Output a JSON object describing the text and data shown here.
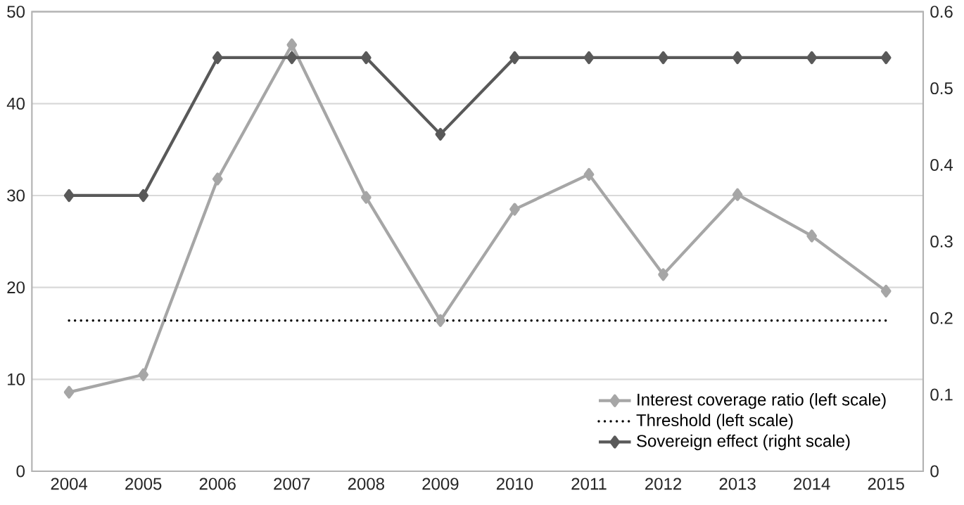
{
  "chart_data": {
    "type": "line",
    "categories": [
      "2004",
      "2005",
      "2006",
      "2007",
      "2008",
      "2009",
      "2010",
      "2011",
      "2012",
      "2013",
      "2014",
      "2015"
    ],
    "series": [
      {
        "name": "Interest coverage ratio (left scale)",
        "color": "#a6a6a6",
        "marker": "diamond",
        "line_style": "solid",
        "values": [
          8.6,
          10.5,
          31.8,
          46.4,
          29.8,
          16.4,
          28.5,
          32.3,
          21.4,
          30.1,
          25.6,
          19.6
        ]
      },
      {
        "name": "Threshold (left scale)",
        "color": "#000000",
        "marker": "none",
        "line_style": "dotted",
        "values": [
          16.4,
          16.4,
          16.4,
          16.4,
          16.4,
          16.4,
          16.4,
          16.4,
          16.4,
          16.4,
          16.4,
          16.4
        ]
      },
      {
        "name": "Sovereign effect (right scale)",
        "color": "#595959",
        "marker": "diamond",
        "line_style": "solid",
        "axis": "y2",
        "values": [
          0.36,
          0.36,
          0.54,
          0.54,
          0.54,
          0.44,
          0.54,
          0.54,
          0.54,
          0.54,
          0.54,
          0.54
        ]
      }
    ],
    "ylim": [
      0,
      50
    ],
    "yticks": [
      0,
      10,
      20,
      30,
      40,
      50
    ],
    "y2lim": [
      0,
      0.6
    ],
    "y2ticks": [
      0,
      0.1,
      0.2,
      0.3,
      0.4,
      0.5,
      0.6
    ],
    "grid": "y",
    "legend": "bottom right"
  }
}
